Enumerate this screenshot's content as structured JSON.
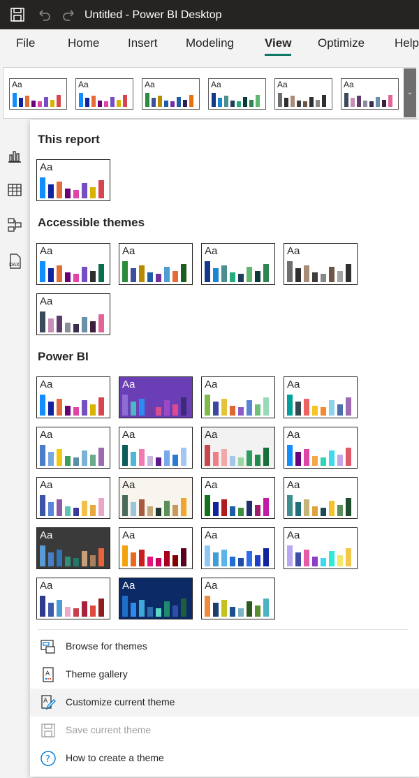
{
  "titlebar": {
    "title": "Untitled - Power BI Desktop",
    "icons": [
      "save-icon",
      "undo-icon",
      "redo-icon"
    ],
    "background": "#252423"
  },
  "ribbon": {
    "tabs": [
      {
        "label": "File",
        "active": false
      },
      {
        "label": "Home",
        "active": false
      },
      {
        "label": "Insert",
        "active": false
      },
      {
        "label": "Modeling",
        "active": false
      },
      {
        "label": "View",
        "active": true
      },
      {
        "label": "Optimize",
        "active": false
      },
      {
        "label": "Help",
        "active": false
      }
    ],
    "accent": "#117865",
    "theme_strip": {
      "thumb_text": "Aa",
      "themes": [
        [
          "#118DFF",
          "#12239E",
          "#E66C37",
          "#6B007B",
          "#E044A7",
          "#744EC2",
          "#D9B300",
          "#D64550"
        ],
        [
          "#118DFF",
          "#12239E",
          "#E66C37",
          "#6B007B",
          "#E044A7",
          "#744EC2",
          "#D9B300",
          "#D64550"
        ],
        [
          "#2C8B3D",
          "#3E4D9C",
          "#B88A00",
          "#1F5DA8",
          "#7030A0",
          "#1F5DA8",
          "#2E1E5A",
          "#EA700C"
        ],
        [
          "#12398A",
          "#1A86D0",
          "#4B8F8F",
          "#1E3F5A",
          "#28AA7F",
          "#0B3A3A",
          "#2F8550",
          "#5FB76F"
        ],
        [
          "#6E6E6E",
          "#2F2F2F",
          "#A98C77",
          "#3E3E3E",
          "#6F5448",
          "#2E2E2E",
          "#888888",
          "#303030"
        ],
        [
          "#3B4A5A",
          "#C58FB6",
          "#5E3B68",
          "#8C8C9C",
          "#3B2D4E",
          "#6A8FA8",
          "#3B1F3D",
          "#E26599"
        ]
      ],
      "more_icon": "chevron-down-icon"
    }
  },
  "leftnav": {
    "icons": [
      "report-view-icon",
      "table-view-icon",
      "model-view-icon",
      "dax-query-icon"
    ]
  },
  "panel": {
    "thumb_text": "Aa",
    "sections": [
      {
        "title": "This report",
        "themes": [
          {
            "bg": "#FFFFFF",
            "text": "#252423",
            "bars": [
              "#118DFF",
              "#12239E",
              "#E66C37",
              "#6B007B",
              "#E044A7",
              "#744EC2",
              "#D9B300",
              "#D64550"
            ]
          }
        ]
      },
      {
        "title": "Accessible themes",
        "themes": [
          {
            "bg": "#FFFFFF",
            "text": "#252423",
            "bars": [
              "#118DFF",
              "#12239E",
              "#E66C37",
              "#6B007B",
              "#E044A7",
              "#744EC2",
              "#2E2E2E",
              "#0B6E4F"
            ]
          },
          {
            "bg": "#FFFFFF",
            "text": "#252423",
            "bars": [
              "#2C8B3D",
              "#3E4D9C",
              "#B88A00",
              "#1F5DA8",
              "#7030A0",
              "#4F9DD3",
              "#E66C37",
              "#1B5E20"
            ]
          },
          {
            "bg": "#FFFFFF",
            "text": "#252423",
            "bars": [
              "#12398A",
              "#1A86D0",
              "#4B8F8F",
              "#28AA7F",
              "#1E3F5A",
              "#5FB76F",
              "#0B3A3A",
              "#2F8550"
            ]
          },
          {
            "bg": "#FFFFFF",
            "text": "#252423",
            "bars": [
              "#6E6E6E",
              "#2F2F2F",
              "#A98C77",
              "#3E3E3E",
              "#888888",
              "#6F5448",
              "#A3A3A3",
              "#303030"
            ]
          },
          {
            "bg": "#FFFFFF",
            "text": "#252423",
            "bars": [
              "#3B4A5A",
              "#C58FB6",
              "#5E3B68",
              "#8C8C9C",
              "#3B2D4E",
              "#6A8FA8",
              "#3B1F3D",
              "#E26599"
            ]
          }
        ]
      },
      {
        "title": "Power BI",
        "themes": [
          {
            "bg": "#FFFFFF",
            "text": "#252423",
            "bars": [
              "#118DFF",
              "#12239E",
              "#E66C37",
              "#6B007B",
              "#E044A7",
              "#744EC2",
              "#D9B300",
              "#D64550"
            ]
          },
          {
            "bg": "#6A3FB5",
            "text": "#FFFFFF",
            "bars": [
              "#8E6CD6",
              "#4CB8C4",
              "#2E89F0",
              "#6E3EA8",
              "#D94F8C",
              "#9A4AC4",
              "#E04A8A",
              "#3E2A78"
            ]
          },
          {
            "bg": "#FFFFFF",
            "text": "#252423",
            "bars": [
              "#7FBA4B",
              "#3B4A9C",
              "#E5C437",
              "#E0662F",
              "#8C5BC7",
              "#5A84D6",
              "#6CC07A",
              "#9AD9B8"
            ]
          },
          {
            "bg": "#FFFFFF",
            "text": "#252423",
            "bars": [
              "#00A19C",
              "#37474F",
              "#F06262",
              "#F7C325",
              "#F28A30",
              "#8DD3EE",
              "#4C6FAE",
              "#A06AB4"
            ]
          },
          {
            "bg": "#FFFFFF",
            "text": "#252423",
            "bars": [
              "#4A7CC9",
              "#78A9DE",
              "#F2C811",
              "#3A9E5A",
              "#5B8FA8",
              "#79B4D6",
              "#6BAA8B",
              "#9A6AB2"
            ]
          },
          {
            "bg": "#FFFFFF",
            "text": "#252423",
            "bars": [
              "#0B5C5A",
              "#4DB6D9",
              "#F27AB0",
              "#C6B7DD",
              "#5E1A8C",
              "#79A9E8",
              "#2B7BD1",
              "#A3C7F2"
            ]
          },
          {
            "bg": "#F2F2F2",
            "text": "#252423",
            "bars": [
              "#C8454B",
              "#F07E87",
              "#F2A8A8",
              "#A8C7E6",
              "#9BD6A0",
              "#2E9C5E",
              "#1F8A4C",
              "#16703A"
            ]
          },
          {
            "bg": "#FFFFFF",
            "text": "#252423",
            "bars": [
              "#118DFF",
              "#6B007B",
              "#E044A7",
              "#F2A84B",
              "#2ED5B9",
              "#3ED8F0",
              "#C8A7E8",
              "#E05A6C"
            ]
          },
          {
            "bg": "#FFFFFF",
            "text": "#252423",
            "bars": [
              "#3E54A8",
              "#5A84D6",
              "#8E5AA8",
              "#5AC4B0",
              "#3E3A9C",
              "#F2C04B",
              "#E8A83E",
              "#E8A7C8"
            ]
          },
          {
            "bg": "#F7F5EE",
            "text": "#252423",
            "bars": [
              "#4B6B5A",
              "#9AC4DA",
              "#A85A3E",
              "#C4A87A",
              "#1F3A2E",
              "#5A8E5A",
              "#C89A5A",
              "#F2A52B"
            ]
          },
          {
            "bg": "#FFFFFF",
            "text": "#252423",
            "bars": [
              "#15701C",
              "#12239E",
              "#B01C1C",
              "#1F5DA8",
              "#3E8E3E",
              "#1E2E6E",
              "#9E1C6E",
              "#C01CA8"
            ]
          },
          {
            "bg": "#FFFFFF",
            "text": "#252423",
            "bars": [
              "#3E8E8E",
              "#1F6E7A",
              "#C4B47A",
              "#E0A43E",
              "#1F4A5A",
              "#F2C32B",
              "#5A8E5A",
              "#1E4E2E"
            ]
          },
          {
            "bg": "#3A3A3A",
            "text": "#FFFFFF",
            "bars": [
              "#5B9BD5",
              "#4A7EC4",
              "#2E75B6",
              "#2F8F7A",
              "#26766A",
              "#C4A07A",
              "#A88060",
              "#E8633A"
            ]
          },
          {
            "bg": "#FFFFFF",
            "text": "#252423",
            "bars": [
              "#F2A20B",
              "#E86A1E",
              "#C81E1E",
              "#E0147E",
              "#C8005E",
              "#A8001E",
              "#800000",
              "#5A001E"
            ]
          },
          {
            "bg": "#FFFFFF",
            "text": "#252423",
            "bars": [
              "#8EC8F2",
              "#3E9CD8",
              "#5AB4E8",
              "#1E6ED6",
              "#1F4EA8",
              "#2E6EE8",
              "#1E3EC8",
              "#12239E"
            ]
          },
          {
            "bg": "#FFFFFF",
            "text": "#252423",
            "bars": [
              "#B8A7F2",
              "#3E4EA8",
              "#E85AA8",
              "#8E3EC4",
              "#3ED8F2",
              "#2EE8D8",
              "#F2E86A",
              "#F2C84B"
            ]
          },
          {
            "bg": "#FFFFFF",
            "text": "#252423",
            "bars": [
              "#2E3A8E",
              "#3E5AA8",
              "#4A9CD6",
              "#F0A8C8",
              "#C83E4B",
              "#A8223E",
              "#E04A3E",
              "#8E1E1E"
            ]
          },
          {
            "bg": "#0C2A66",
            "text": "#FFFFFF",
            "bars": [
              "#1E6EC8",
              "#2E8AE8",
              "#3EA8D6",
              "#2E6EAF",
              "#5ADAC4",
              "#1F8A6E",
              "#2E4EA8",
              "#1E5E3E"
            ]
          },
          {
            "bg": "#FFFFFF",
            "text": "#252423",
            "bars": [
              "#F28A3E",
              "#1E3E6E",
              "#C4C21E",
              "#1E4E8E",
              "#7AB4C4",
              "#2E5A1E",
              "#5A8E2E",
              "#4AB4C4"
            ]
          }
        ]
      }
    ],
    "menu": [
      {
        "label": "Browse for themes",
        "icon": "browse-themes-icon",
        "disabled": false,
        "hover": false
      },
      {
        "label": "Theme gallery",
        "icon": "theme-gallery-icon",
        "disabled": false,
        "hover": false
      },
      {
        "label": "Customize current theme",
        "icon": "customize-theme-icon",
        "disabled": false,
        "hover": true
      },
      {
        "label": "Save current theme",
        "icon": "save-theme-icon",
        "disabled": true,
        "hover": false
      },
      {
        "label": "How to create a theme",
        "icon": "help-icon",
        "disabled": false,
        "hover": false
      }
    ]
  }
}
